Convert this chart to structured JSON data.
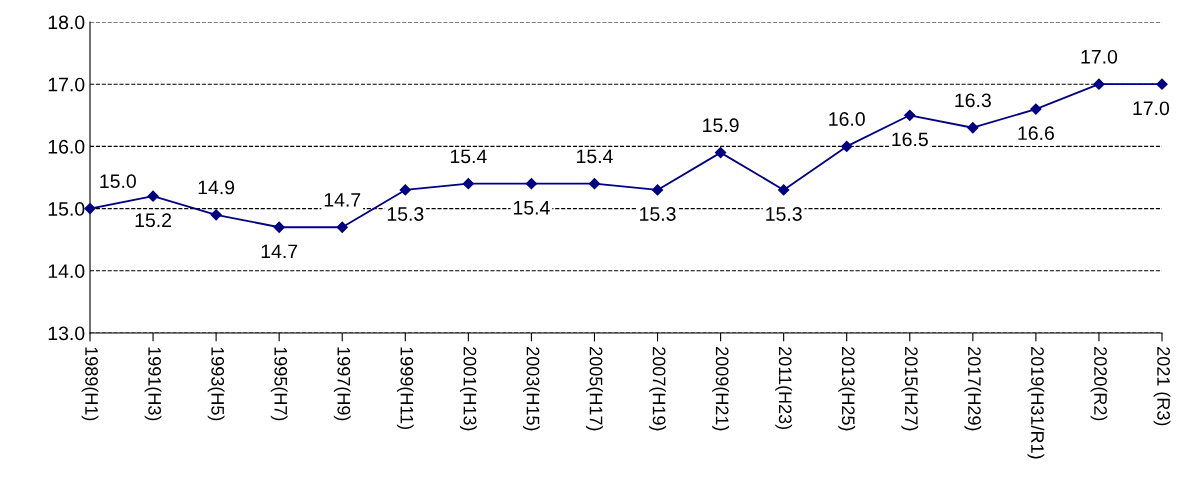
{
  "chart_data": {
    "type": "line",
    "categories": [
      "1989(H1)",
      "1991(H3)",
      "1993(H5)",
      "1995(H7)",
      "1997(H9)",
      "1999(H11)",
      "2001(H13)",
      "2003(H15)",
      "2005(H17)",
      "2007(H19)",
      "2009(H21)",
      "2011(H23)",
      "2013(H25)",
      "2015(H27)",
      "2017(H29)",
      "2019(H31/R1)",
      "2020(R2)",
      "2021 (R3)"
    ],
    "series": [
      {
        "color": "#000080",
        "values": [
          15.0,
          15.2,
          14.9,
          14.7,
          14.7,
          15.3,
          15.4,
          15.4,
          15.4,
          15.3,
          15.9,
          15.3,
          16.0,
          16.5,
          16.3,
          16.6,
          17.0,
          17.0
        ],
        "value_labels": [
          "15.0",
          "15.2",
          "14.9",
          "14.7",
          "14.7",
          "15.3",
          "15.4",
          "15.4",
          "15.4",
          "15.3",
          "15.9",
          "15.3",
          "16.0",
          "16.5",
          "16.3",
          "16.6",
          "17.0",
          "17.0"
        ]
      }
    ],
    "ylim": [
      13,
      18
    ],
    "yticks": [
      {
        "value": 13,
        "label": "13.0"
      },
      {
        "value": 14,
        "label": "14.0"
      },
      {
        "value": 15,
        "label": "15.0"
      },
      {
        "value": 16,
        "label": "16.0"
      },
      {
        "value": 17,
        "label": "17.0"
      },
      {
        "value": 18,
        "label": "18.0"
      }
    ],
    "grid": "y",
    "marker": "diamond",
    "line_style": "solid"
  }
}
